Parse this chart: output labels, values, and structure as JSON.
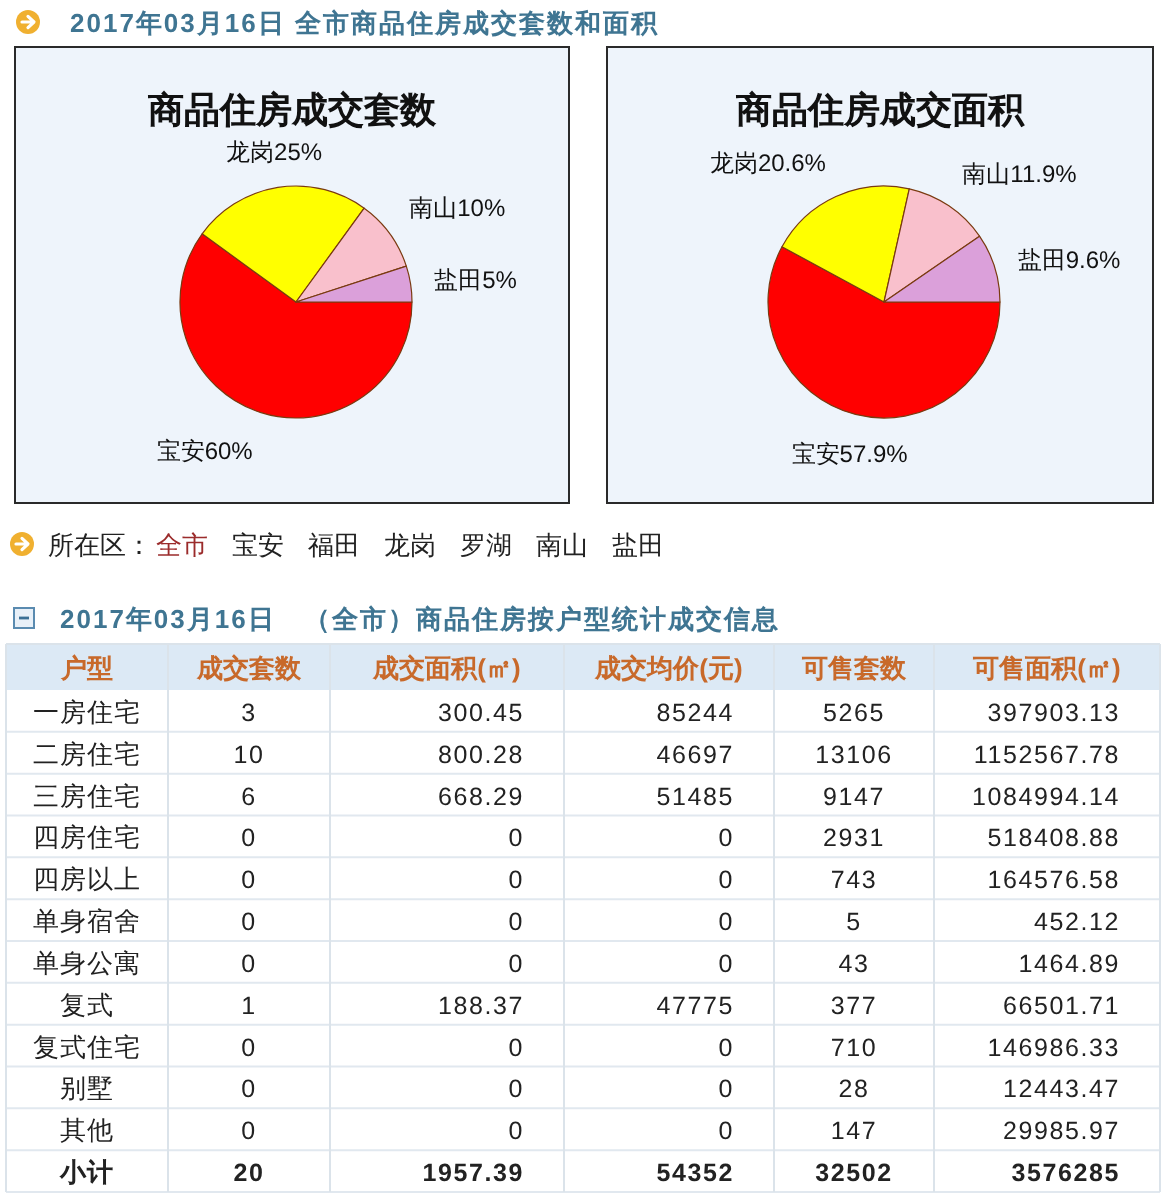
{
  "chart_data": [
    {
      "type": "other",
      "title": "2017年03月16日 全市商品住房成交套数和面积"
    },
    {
      "type": "pie",
      "title": "商品住房成交套数",
      "categories": [
        "宝安",
        "龙岗",
        "南山",
        "盐田"
      ],
      "values": [
        60,
        25,
        10,
        5
      ],
      "value_labels": [
        "60%",
        "25%",
        "10%",
        "5%"
      ],
      "colors": [
        "#ff0000",
        "#ffff00",
        "#f9c0cc",
        "#dba0da"
      ]
    },
    {
      "type": "pie",
      "title": "商品住房成交面积",
      "categories": [
        "宝安",
        "龙岗",
        "南山",
        "盐田"
      ],
      "values": [
        57.9,
        20.6,
        11.9,
        9.6
      ],
      "value_labels": [
        "57.9%",
        "20.6%",
        "11.9%",
        "9.6%"
      ],
      "colors": [
        "#ff0000",
        "#ffff00",
        "#f9c0cc",
        "#dba0da"
      ]
    },
    {
      "type": "other",
      "annotations": [
        "所在区：",
        "全市",
        "宝安",
        "福田",
        "龙岗",
        "罗湖",
        "南山",
        "盐田"
      ]
    },
    {
      "type": "heatmap",
      "title": "2017年03月16日　（全市）商品住房按户型统计成交信息",
      "ylabel": "户型",
      "categories": [
        "成交套数",
        "成交面积(㎡)",
        "成交均价(元)",
        "可售套数",
        "可售面积(㎡)"
      ],
      "y_categories": [
        "一房住宅",
        "二房住宅",
        "三房住宅",
        "四房住宅",
        "四房以上",
        "单身宿舍",
        "单身公寓",
        "复式",
        "复式住宅",
        "别墅",
        "其他",
        "小计"
      ],
      "cells": [
        [
          3,
          300.45,
          85244,
          5265,
          397903.13
        ],
        [
          10,
          800.28,
          46697,
          13106,
          1152567.78
        ],
        [
          6,
          668.29,
          51485,
          9147,
          1084994.14
        ],
        [
          0,
          0,
          0,
          2931,
          518408.88
        ],
        [
          0,
          0,
          0,
          743,
          164576.58
        ],
        [
          0,
          0,
          0,
          5,
          452.12
        ],
        [
          0,
          0,
          0,
          43,
          1464.89
        ],
        [
          1,
          188.37,
          47775,
          377,
          66501.71
        ],
        [
          0,
          0,
          0,
          710,
          146986.33
        ],
        [
          0,
          0,
          0,
          28,
          12443.47
        ],
        [
          0,
          0,
          0,
          147,
          29985.97
        ],
        [
          20,
          1957.39,
          54352,
          32502,
          3576285
        ]
      ],
      "data_labels": true
    }
  ]
}
